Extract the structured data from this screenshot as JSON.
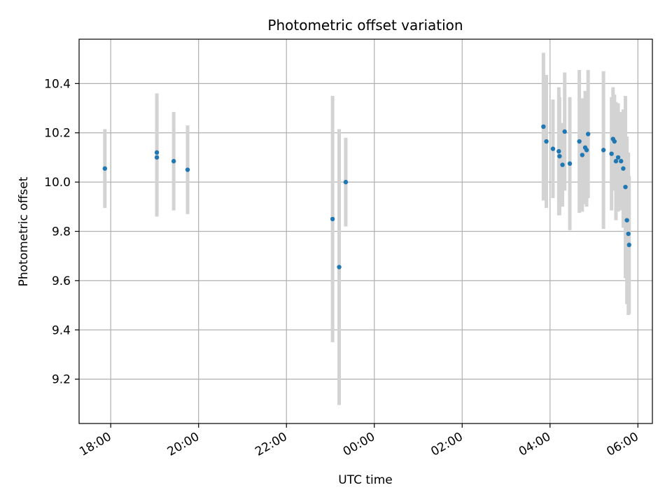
{
  "chart_data": {
    "type": "scatter",
    "title": "Photometric offset variation",
    "xlabel": "UTC time",
    "ylabel": "Photometric offset",
    "grid": true,
    "x_tick_labels": [
      "18:00",
      "20:00",
      "22:00",
      "00:00",
      "02:00",
      "04:00",
      "06:00"
    ],
    "x_tick_hours": [
      18,
      20,
      22,
      24,
      26,
      28,
      30
    ],
    "x_tick_label_rotation_deg": 30,
    "xlim_hours": [
      17.28,
      30.33
    ],
    "y_ticks": [
      9.2,
      9.4,
      9.6,
      9.8,
      10.0,
      10.2,
      10.4
    ],
    "y_tick_labels": [
      "9.2",
      "9.4",
      "9.6",
      "9.8",
      "10.0",
      "10.2",
      "10.4"
    ],
    "ylim": [
      9.02,
      10.58
    ],
    "colors": {
      "point": "#1f77b4",
      "errorbar": "#d3d3d3",
      "grid": "#b0b0b0",
      "axes": "#000000"
    },
    "series": [
      {
        "x_time": [
          "17:52",
          "19:03",
          "19:03",
          "19:26",
          "19:45",
          "23:03",
          "23:12",
          "23:21",
          "03:51",
          "03:55",
          "04:04",
          "04:12",
          "04:13",
          "04:17",
          "04:20",
          "04:27",
          "04:40",
          "04:44",
          "04:48",
          "04:50",
          "04:52",
          "05:13",
          "05:24",
          "05:26",
          "05:28",
          "05:30",
          "05:33",
          "05:37",
          "05:40",
          "05:43",
          "05:45",
          "05:47"
        ],
        "y": [
          10.055,
          10.12,
          10.1,
          10.085,
          10.05,
          9.85,
          9.655,
          10.0,
          10.225,
          10.165,
          10.135,
          10.125,
          10.105,
          10.07,
          10.205,
          10.075,
          10.165,
          10.11,
          10.14,
          10.13,
          10.195,
          10.13,
          10.115,
          10.175,
          10.165,
          10.085,
          10.1,
          10.085,
          10.055,
          9.98,
          9.845,
          9.79
        ],
        "yerr": [
          0.16,
          0.24,
          0.24,
          0.2,
          0.18,
          0.5,
          0.56,
          0.18,
          0.3,
          0.27,
          0.2,
          0.26,
          0.24,
          0.17,
          0.24,
          0.27,
          0.29,
          0.23,
          0.23,
          0.23,
          0.26,
          0.32,
          0.23,
          0.21,
          0.19,
          0.24,
          0.22,
          0.2,
          0.24,
          0.37,
          0.34,
          0.33
        ]
      },
      {
        "x_time": [
          "05:48"
        ],
        "y": [
          9.745
        ],
        "yerr": [
          0.28
        ]
      }
    ]
  }
}
